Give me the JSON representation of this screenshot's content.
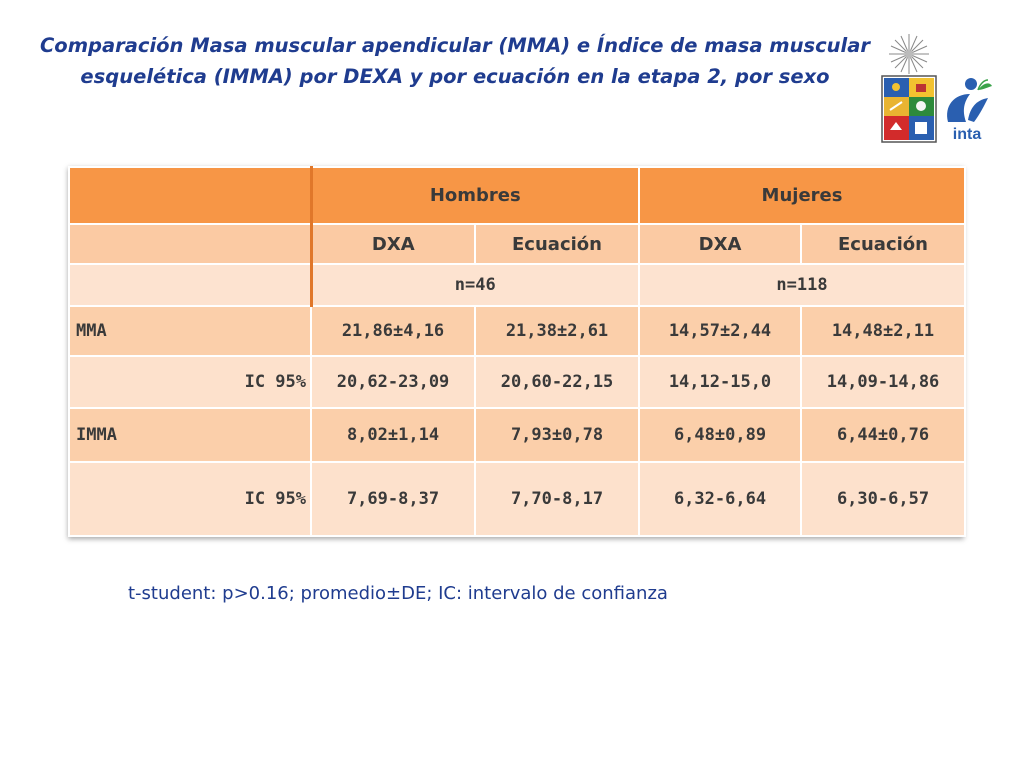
{
  "slide": {
    "title": "Comparación Masa muscular apendicular (MMA) e Índice de masa muscular esquelética (IMMA) por DEXA y por ecuación en la etapa 2, por sexo",
    "logo_text": "inta",
    "footnote": "t-student: p>0.16; promedio±DE; IC: intervalo de confianza"
  },
  "table": {
    "group_headers": [
      "Hombres",
      "Mujeres"
    ],
    "method_headers": [
      "DXA",
      "Ecuación",
      "DXA",
      "Ecuación"
    ],
    "n_values": [
      "n=46",
      "n=118"
    ],
    "rows": [
      {
        "label": "MMA",
        "cells": [
          "21,86±4,16",
          "21,38±2,61",
          "14,57±2,44",
          "14,48±2,11"
        ]
      },
      {
        "label": "IC 95%",
        "cells": [
          "20,62-23,09",
          "20,60-22,15",
          "14,12-15,0",
          "14,09-14,86"
        ]
      },
      {
        "label": "IMMA",
        "cells": [
          "8,02±1,14",
          "7,93±0,78",
          "6,48±0,89",
          "6,44±0,76"
        ]
      },
      {
        "label": "IC 95%",
        "cells": [
          "7,69-8,37",
          "7,70-8,17",
          "6,32-6,64",
          "6,30-6,57"
        ]
      }
    ]
  },
  "colors": {
    "title": "#1f3c8f",
    "header_orange": "#f79646",
    "row_dark": "#fbcfaa",
    "row_light": "#fde1cc"
  }
}
